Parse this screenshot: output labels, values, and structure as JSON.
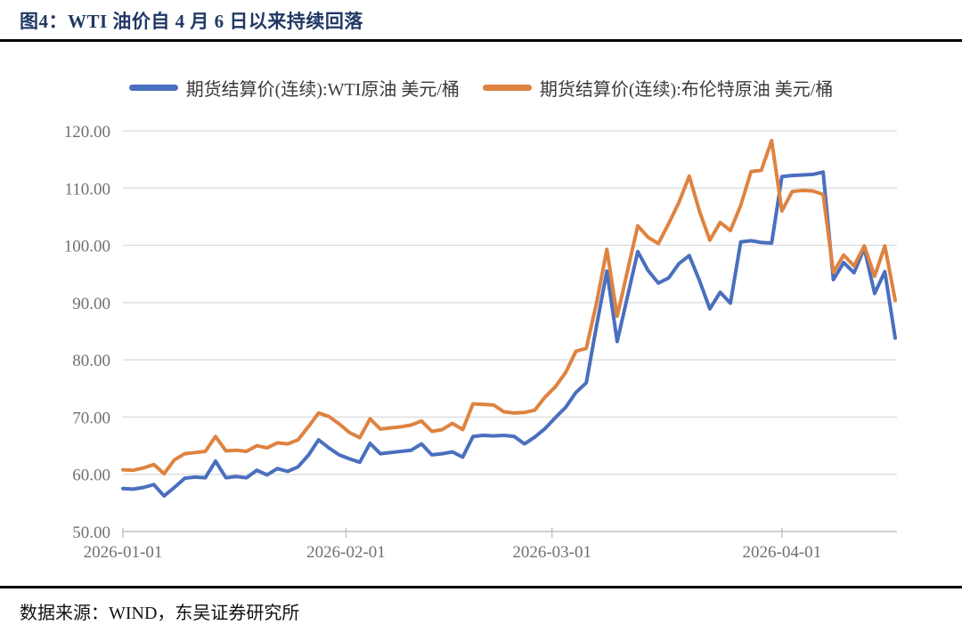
{
  "title": {
    "text": "图4：WTI 油价自 4 月 6 日以来持续回落"
  },
  "footer": {
    "text": "数据来源：WIND，东吴证券研究所"
  },
  "chart_data": {
    "type": "line",
    "title": "图4：WTI 油价自 4 月 6 日以来持续回落",
    "xlabel": "",
    "ylabel": "",
    "ylim": [
      50,
      120
    ],
    "grid": true,
    "legend_position": "top",
    "y_tick_values": [
      120,
      110,
      100,
      90,
      80,
      70,
      60,
      50
    ],
    "y_tick_labels": [
      "120.00",
      "110.00",
      "100.00",
      "90.00",
      "80.00",
      "70.00",
      "60.00",
      "50.00"
    ],
    "x_ticks": [
      {
        "date": "2026-01-01",
        "label": "2026-01-01"
      },
      {
        "date": "2026-02-01",
        "label": "2026-02-01"
      },
      {
        "date": "2026-03-01",
        "label": "2026-03-01"
      },
      {
        "date": "2026-04-01",
        "label": "2026-04-01"
      }
    ],
    "dates": [
      "2026-01-01",
      "2026-01-02",
      "2026-01-05",
      "2026-01-06",
      "2026-01-07",
      "2026-01-08",
      "2026-01-09",
      "2026-01-12",
      "2026-01-13",
      "2026-01-14",
      "2026-01-15",
      "2026-01-16",
      "2026-01-19",
      "2026-01-20",
      "2026-01-21",
      "2026-01-22",
      "2026-01-23",
      "2026-01-26",
      "2026-01-27",
      "2026-01-28",
      "2026-01-29",
      "2026-01-30",
      "2026-02-02",
      "2026-02-03",
      "2026-02-04",
      "2026-02-05",
      "2026-02-06",
      "2026-02-09",
      "2026-02-10",
      "2026-02-11",
      "2026-02-12",
      "2026-02-13",
      "2026-02-16",
      "2026-02-17",
      "2026-02-18",
      "2026-02-19",
      "2026-02-20",
      "2026-02-23",
      "2026-02-24",
      "2026-02-25",
      "2026-02-26",
      "2026-02-27",
      "2026-03-02",
      "2026-03-03",
      "2026-03-04",
      "2026-03-05",
      "2026-03-06",
      "2026-03-09",
      "2026-03-10",
      "2026-03-11",
      "2026-03-12",
      "2026-03-13",
      "2026-03-16",
      "2026-03-17",
      "2026-03-18",
      "2026-03-19",
      "2026-03-20",
      "2026-03-23",
      "2026-03-24",
      "2026-03-25",
      "2026-03-26",
      "2026-03-27",
      "2026-03-30",
      "2026-03-31",
      "2026-04-01",
      "2026-04-02",
      "2026-04-03",
      "2026-04-06",
      "2026-04-07",
      "2026-04-08",
      "2026-04-09",
      "2026-04-10",
      "2026-04-13",
      "2026-04-14",
      "2026-04-15",
      "2026-04-16"
    ],
    "series": [
      {
        "name": "期货结算价(连续):WTI原油 美元/桶",
        "color": "#4A6FBE",
        "values": [
          57.5,
          57.4,
          57.7,
          58.2,
          56.2,
          57.7,
          59.3,
          59.5,
          59.4,
          62.3,
          59.4,
          59.6,
          59.4,
          60.7,
          59.9,
          61.0,
          60.5,
          61.3,
          63.3,
          66.0,
          64.6,
          63.4,
          62.7,
          62.1,
          65.4,
          63.6,
          63.8,
          64.0,
          64.2,
          65.3,
          63.4,
          63.6,
          63.9,
          63.0,
          66.6,
          66.8,
          66.7,
          66.8,
          66.6,
          65.3,
          66.5,
          68.0,
          69.9,
          71.7,
          74.3,
          76.0,
          86.0,
          95.5,
          83.2,
          91.0,
          98.9,
          95.6,
          93.4,
          94.3,
          96.8,
          98.2,
          93.8,
          88.9,
          91.8,
          89.9,
          100.6,
          100.8,
          100.5,
          100.4,
          112.0,
          112.2,
          112.3,
          112.4,
          112.8,
          94.0,
          97.0,
          95.2,
          99.5,
          91.6,
          95.4,
          83.8
        ]
      },
      {
        "name": "期货结算价(连续):布伦特原油 美元/桶",
        "color": "#DE8340",
        "values": [
          60.8,
          60.7,
          61.1,
          61.7,
          60.1,
          62.5,
          63.6,
          63.8,
          64.0,
          66.6,
          64.1,
          64.2,
          64.0,
          65.0,
          64.6,
          65.5,
          65.3,
          66.0,
          68.3,
          70.7,
          70.1,
          68.8,
          67.3,
          66.4,
          69.7,
          67.9,
          68.1,
          68.3,
          68.6,
          69.3,
          67.5,
          67.8,
          68.9,
          67.8,
          72.3,
          72.2,
          72.1,
          70.9,
          70.7,
          70.8,
          71.2,
          73.5,
          75.3,
          77.8,
          81.5,
          82.0,
          90.0,
          99.3,
          87.6,
          95.5,
          103.4,
          101.4,
          100.3,
          103.8,
          107.5,
          112.1,
          105.9,
          100.9,
          104.0,
          102.6,
          107.0,
          112.9,
          113.1,
          118.3,
          106.0,
          109.4,
          109.6,
          109.5,
          108.9,
          95.3,
          98.3,
          96.4,
          99.9,
          94.6,
          99.9,
          90.4
        ]
      }
    ],
    "colors": {
      "wti_line": "#4A6FBE",
      "brent_line": "#DE8340",
      "gridline": "#D9D9D9",
      "axis": "#BFBFBF",
      "tick_label": "#707070",
      "title": "#203864"
    }
  }
}
